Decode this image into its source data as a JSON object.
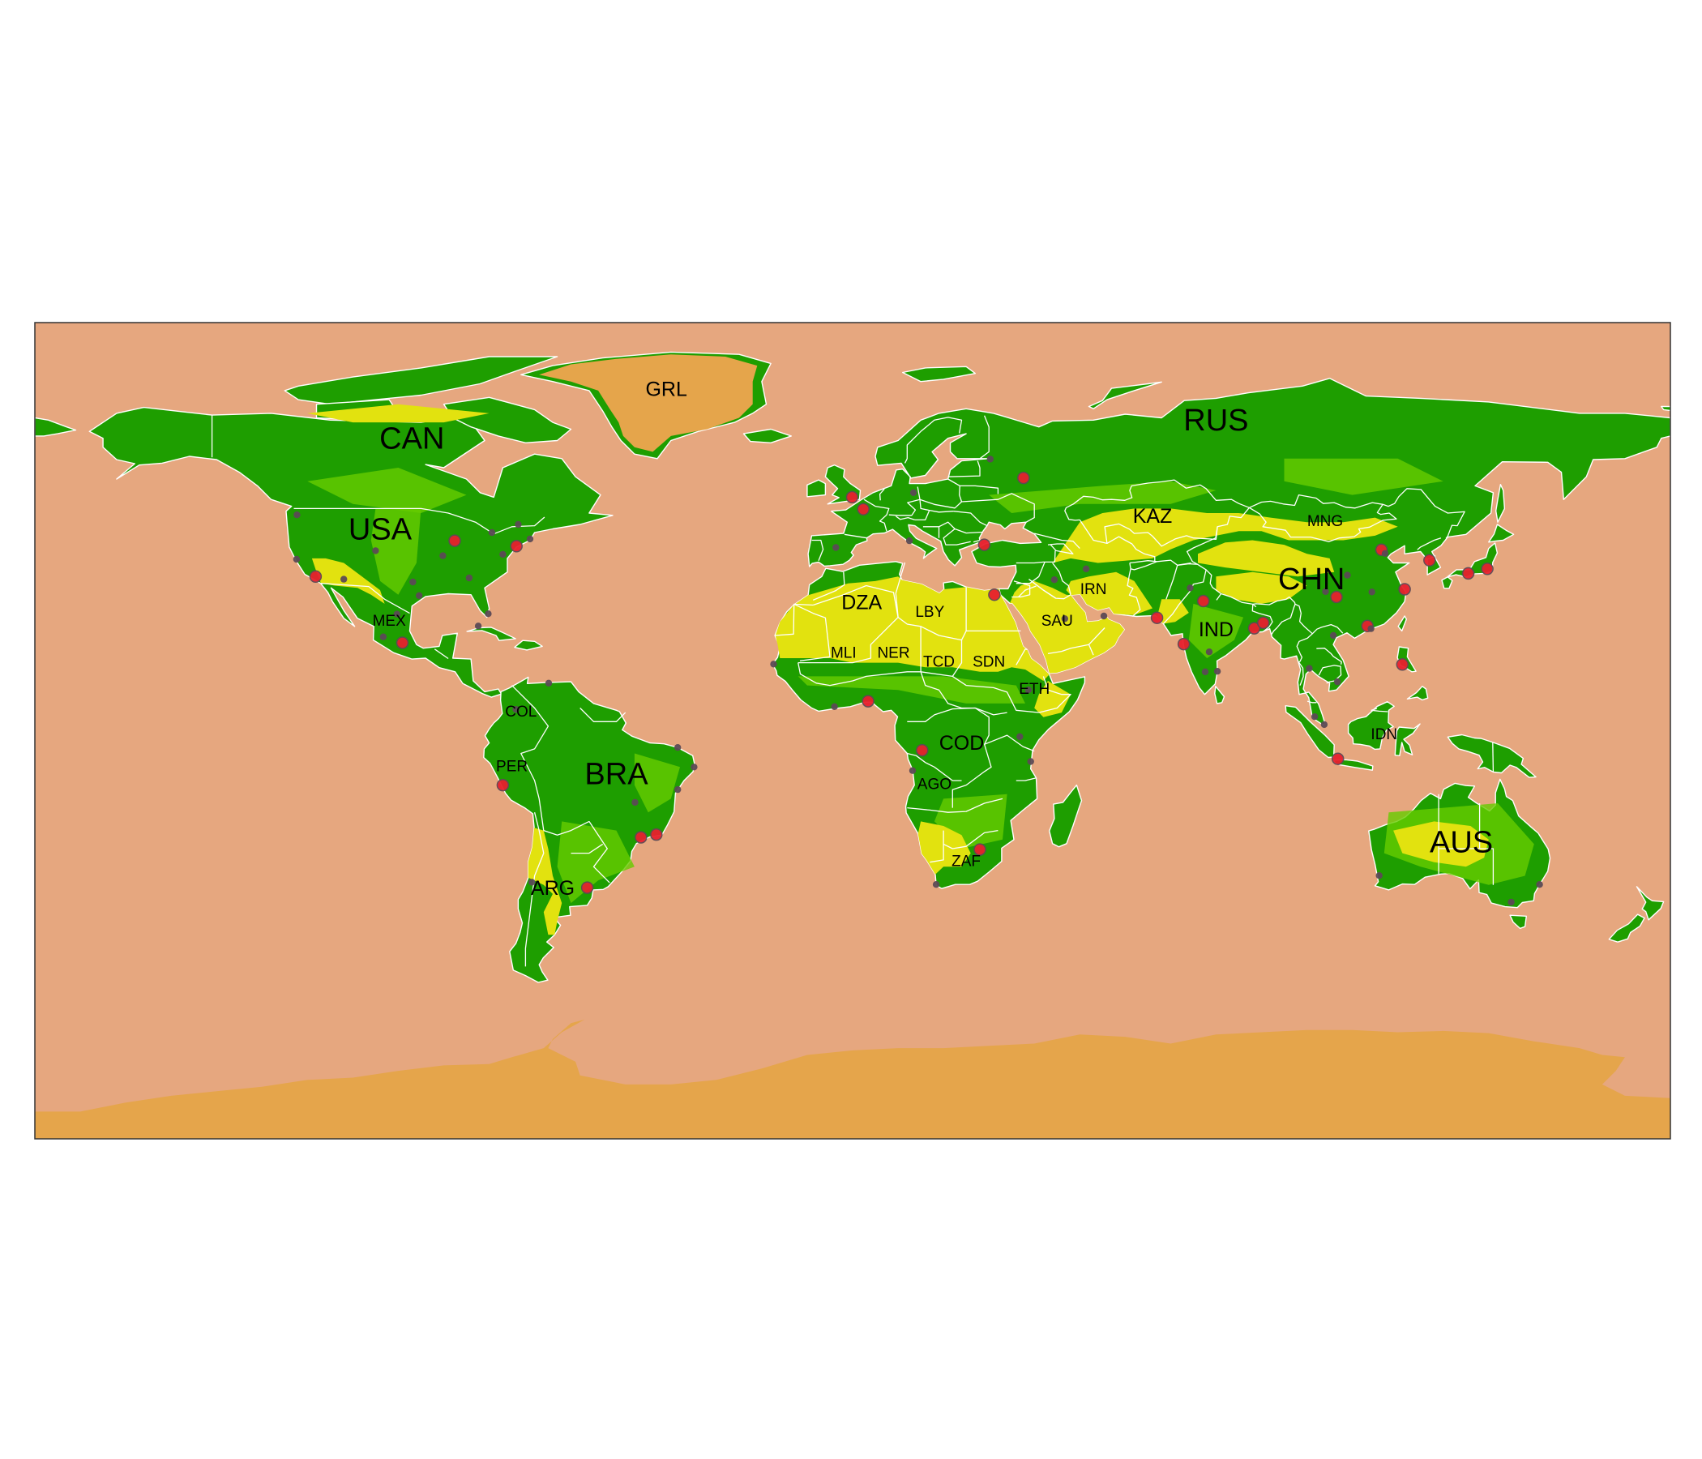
{
  "colors": {
    "ocean": "#E6A77F",
    "ice": "#E5A54B",
    "forest": "#1E9E00",
    "grassland": "#66CC00",
    "desert": "#E2E20F",
    "border": "#FFFFFF",
    "city_small": "#5C4A55",
    "city_large": "#E8202E",
    "frame": "#333333"
  },
  "labels": {
    "large": [
      {
        "code": "RUS",
        "lon": 80,
        "lat": 68
      },
      {
        "code": "CAN",
        "lon": -97,
        "lat": 64
      },
      {
        "code": "USA",
        "lon": -104,
        "lat": 44
      },
      {
        "code": "BRA",
        "lon": -52,
        "lat": -10
      },
      {
        "code": "CHN",
        "lon": 101,
        "lat": 33
      },
      {
        "code": "AUS",
        "lon": 134,
        "lat": -25
      }
    ],
    "medium": [
      {
        "code": "IND",
        "lon": 80,
        "lat": 22
      },
      {
        "code": "KAZ",
        "lon": 66,
        "lat": 47
      },
      {
        "code": "DZA",
        "lon": 2,
        "lat": 28
      },
      {
        "code": "COD",
        "lon": 24,
        "lat": -3
      },
      {
        "code": "ARG",
        "lon": -66,
        "lat": -35
      },
      {
        "code": "GRL",
        "lon": -41,
        "lat": 75
      }
    ],
    "small": [
      {
        "code": "LBY",
        "lon": 17,
        "lat": 26
      },
      {
        "code": "SAU",
        "lon": 45,
        "lat": 24
      },
      {
        "code": "IRN",
        "lon": 53,
        "lat": 31
      },
      {
        "code": "MNG",
        "lon": 104,
        "lat": 46
      },
      {
        "code": "MEX",
        "lon": -102,
        "lat": 24
      },
      {
        "code": "MLI",
        "lon": -2,
        "lat": 17
      },
      {
        "code": "NER",
        "lon": 9,
        "lat": 17
      },
      {
        "code": "TCD",
        "lon": 19,
        "lat": 15
      },
      {
        "code": "SDN",
        "lon": 30,
        "lat": 15
      },
      {
        "code": "ETH",
        "lon": 40,
        "lat": 9
      },
      {
        "code": "COL",
        "lon": -73,
        "lat": 4
      },
      {
        "code": "PER",
        "lon": -75,
        "lat": -8
      },
      {
        "code": "AGO",
        "lon": 18,
        "lat": -12
      },
      {
        "code": "ZAF",
        "lon": 25,
        "lat": -29
      },
      {
        "code": "IDN",
        "lon": 117,
        "lat": -1
      }
    ]
  },
  "cities": [
    {
      "lon": -74,
      "lat": 40.7,
      "large": true
    },
    {
      "lon": -87.6,
      "lat": 41.9,
      "large": true
    },
    {
      "lon": -118.2,
      "lat": 34,
      "large": true
    },
    {
      "lon": -122.4,
      "lat": 37.8,
      "large": false
    },
    {
      "lon": -122.3,
      "lat": 47.6,
      "large": false
    },
    {
      "lon": -95.4,
      "lat": 29.8,
      "large": false
    },
    {
      "lon": -84.4,
      "lat": 33.7,
      "large": false
    },
    {
      "lon": -80.2,
      "lat": 25.8,
      "large": false
    },
    {
      "lon": -77,
      "lat": 38.9,
      "large": false
    },
    {
      "lon": -71,
      "lat": 42.3,
      "large": false
    },
    {
      "lon": -79.4,
      "lat": 43.7,
      "large": false
    },
    {
      "lon": -73.6,
      "lat": 45.5,
      "large": false
    },
    {
      "lon": -96.8,
      "lat": 32.8,
      "large": false
    },
    {
      "lon": -112,
      "lat": 33.4,
      "large": false
    },
    {
      "lon": -105,
      "lat": 39.7,
      "large": false
    },
    {
      "lon": -90.2,
      "lat": 38.6,
      "large": false
    },
    {
      "lon": -99.1,
      "lat": 19.4,
      "large": true
    },
    {
      "lon": -103.3,
      "lat": 20.7,
      "large": false
    },
    {
      "lon": -100.3,
      "lat": 25.7,
      "large": false
    },
    {
      "lon": -82.4,
      "lat": 23.1,
      "large": false
    },
    {
      "lon": -74.1,
      "lat": 4.7,
      "large": false
    },
    {
      "lon": -77,
      "lat": -12,
      "large": true
    },
    {
      "lon": -66.9,
      "lat": 10.5,
      "large": false
    },
    {
      "lon": -46.6,
      "lat": -23.5,
      "large": true
    },
    {
      "lon": -43.2,
      "lat": -22.9,
      "large": true
    },
    {
      "lon": -38.5,
      "lat": -12.97,
      "large": false
    },
    {
      "lon": -34.9,
      "lat": -8,
      "large": false
    },
    {
      "lon": -38.5,
      "lat": -3.7,
      "large": false
    },
    {
      "lon": -47.9,
      "lat": -15.8,
      "large": false
    },
    {
      "lon": -58.4,
      "lat": -34.6,
      "large": true
    },
    {
      "lon": -70.6,
      "lat": -33.4,
      "large": false
    },
    {
      "lon": -0.1,
      "lat": 51.5,
      "large": true
    },
    {
      "lon": 2.35,
      "lat": 48.85,
      "large": true
    },
    {
      "lon": -3.7,
      "lat": 40.4,
      "large": false
    },
    {
      "lon": 12.5,
      "lat": 41.9,
      "large": false
    },
    {
      "lon": 13.4,
      "lat": 52.5,
      "large": false
    },
    {
      "lon": 37.6,
      "lat": 55.75,
      "large": true
    },
    {
      "lon": 30.3,
      "lat": 59.9,
      "large": false
    },
    {
      "lon": 28.97,
      "lat": 41,
      "large": true
    },
    {
      "lon": 31.2,
      "lat": 30,
      "large": true
    },
    {
      "lon": 3.4,
      "lat": 6.5,
      "large": true
    },
    {
      "lon": -4,
      "lat": 5.3,
      "large": false
    },
    {
      "lon": -17.4,
      "lat": 14.7,
      "large": false
    },
    {
      "lon": 36.8,
      "lat": -1.3,
      "large": false
    },
    {
      "lon": 38.7,
      "lat": 9,
      "large": false
    },
    {
      "lon": 15.3,
      "lat": -4.3,
      "large": true
    },
    {
      "lon": 13.2,
      "lat": -8.8,
      "large": false
    },
    {
      "lon": 28,
      "lat": -26.2,
      "large": true
    },
    {
      "lon": 18.4,
      "lat": -33.9,
      "large": false
    },
    {
      "lon": 39.2,
      "lat": -6.8,
      "large": false
    },
    {
      "lon": 44.4,
      "lat": 33.3,
      "large": false
    },
    {
      "lon": 51.4,
      "lat": 35.7,
      "large": false
    },
    {
      "lon": 46.7,
      "lat": 24.7,
      "large": false
    },
    {
      "lon": 55.3,
      "lat": 25.3,
      "large": false
    },
    {
      "lon": 67,
      "lat": 24.9,
      "large": true
    },
    {
      "lon": 74.3,
      "lat": 31.5,
      "large": false
    },
    {
      "lon": 77.2,
      "lat": 28.6,
      "large": true
    },
    {
      "lon": 72.9,
      "lat": 19.1,
      "large": true
    },
    {
      "lon": 88.4,
      "lat": 22.6,
      "large": true
    },
    {
      "lon": 80.3,
      "lat": 13.1,
      "large": false
    },
    {
      "lon": 77.6,
      "lat": 13,
      "large": false
    },
    {
      "lon": 78.5,
      "lat": 17.4,
      "large": false
    },
    {
      "lon": 90.4,
      "lat": 23.8,
      "large": true
    },
    {
      "lon": 116.4,
      "lat": 39.9,
      "large": true
    },
    {
      "lon": 121.5,
      "lat": 31.2,
      "large": true
    },
    {
      "lon": 113.3,
      "lat": 23.1,
      "large": true
    },
    {
      "lon": 114.1,
      "lat": 22.5,
      "large": false
    },
    {
      "lon": 104.1,
      "lat": 30.7,
      "large": false
    },
    {
      "lon": 106.5,
      "lat": 29.5,
      "large": true
    },
    {
      "lon": 114.3,
      "lat": 30.6,
      "large": false
    },
    {
      "lon": 117.2,
      "lat": 39.1,
      "large": false
    },
    {
      "lon": 108.9,
      "lat": 34.3,
      "large": false
    },
    {
      "lon": 126.98,
      "lat": 37.57,
      "large": true
    },
    {
      "lon": 139.7,
      "lat": 35.7,
      "large": true
    },
    {
      "lon": 135.5,
      "lat": 34.7,
      "large": true
    },
    {
      "lon": 121,
      "lat": 14.6,
      "large": true
    },
    {
      "lon": 100.5,
      "lat": 13.75,
      "large": false
    },
    {
      "lon": 106.7,
      "lat": 10.8,
      "large": false
    },
    {
      "lon": 105.8,
      "lat": 21,
      "large": false
    },
    {
      "lon": 106.8,
      "lat": -6.2,
      "large": true
    },
    {
      "lon": 101.7,
      "lat": 3.1,
      "large": false
    },
    {
      "lon": 103.8,
      "lat": 1.35,
      "large": false
    },
    {
      "lon": 151.2,
      "lat": -33.9,
      "large": false
    },
    {
      "lon": 144.96,
      "lat": -37.8,
      "large": false
    },
    {
      "lon": 115.9,
      "lat": -31.95,
      "large": false
    }
  ]
}
